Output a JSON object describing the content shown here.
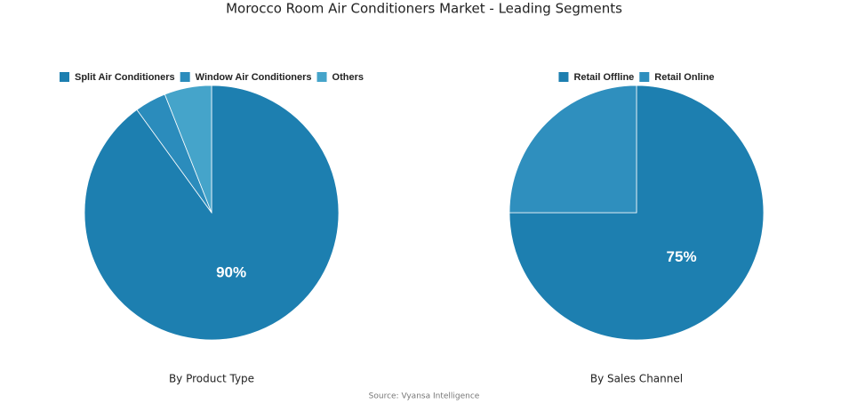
{
  "title": "Morocco Room Air Conditioners Market - Leading Segments",
  "source": "Source: Vyansa Intelligence",
  "chart_data": [
    {
      "type": "pie",
      "title": "By Product Type",
      "categories": [
        "Split Air Conditioners",
        "Window Air Conditioners",
        "Others"
      ],
      "values": [
        90,
        4,
        6
      ],
      "value_labels": [
        "90%",
        null,
        null
      ],
      "colors": [
        "#1d7fb0",
        "#2b8cbc",
        "#45a4ca"
      ]
    },
    {
      "type": "pie",
      "title": "By Sales Channel",
      "categories": [
        "Retail Offline",
        "Retail Online"
      ],
      "values": [
        75,
        25
      ],
      "value_labels": [
        "75%",
        null
      ],
      "colors": [
        "#1d7fb0",
        "#2f8fbe"
      ]
    }
  ]
}
